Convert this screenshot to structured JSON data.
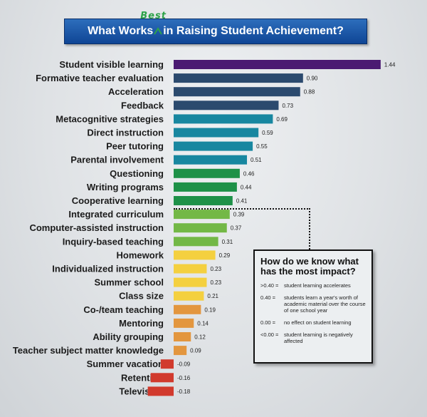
{
  "title": {
    "before": "What Works",
    "inserted": "Best",
    "after": "in Raising Student Achievement?"
  },
  "callout": {
    "title": "How do we know what has the most impact?",
    "items": [
      {
        "key": ">0.40 =",
        "text": "student learning accelerates"
      },
      {
        "key": "0.40 =",
        "text": "students learn a year's worth of academic material over the course of one school year"
      },
      {
        "key": "0.00 =",
        "text": "no effect on student learning"
      },
      {
        "key": "<0.00 =",
        "text": "student learning is negatively affected"
      }
    ]
  },
  "chart_data": {
    "type": "bar",
    "orientation": "horizontal",
    "title": "What Works Best in Raising Student Achievement?",
    "categories": [
      "Student visible learning",
      "Formative teacher evaluation",
      "Acceleration",
      "Feedback",
      "Metacognitive strategies",
      "Direct instruction",
      "Peer tutoring",
      "Parental involvement",
      "Questioning",
      "Writing programs",
      "Cooperative learning",
      "Integrated curriculum",
      "Computer-assisted instruction",
      "Inquiry-based teaching",
      "Homework",
      "Individualized instruction",
      "Summer school",
      "Class size",
      "Co-/team teaching",
      "Mentoring",
      "Ability grouping",
      "Teacher subject matter knowledge",
      "Summer vacation",
      "Retention",
      "Television"
    ],
    "values": [
      1.44,
      0.9,
      0.88,
      0.73,
      0.69,
      0.59,
      0.55,
      0.51,
      0.46,
      0.44,
      0.41,
      0.39,
      0.37,
      0.31,
      0.29,
      0.23,
      0.23,
      0.21,
      0.19,
      0.14,
      0.12,
      0.09,
      -0.09,
      -0.16,
      -0.18
    ],
    "value_labels": [
      "1.44",
      "0.90",
      "0.88",
      "0.73",
      "0.69",
      "0.59",
      "0.55",
      "0.51",
      "0.46",
      "0.44",
      "0.41",
      "0.39",
      "0.37",
      "0.31",
      "0.29",
      "0.23",
      "0.23",
      "0.21",
      "0.19",
      "0.14",
      "0.12",
      "0.09",
      "-0.09",
      "-0.16",
      "-0.18"
    ],
    "colors": [
      "#4b1a72",
      "#2b4a6e",
      "#2b4a6e",
      "#2b4a6e",
      "#1887a0",
      "#1887a0",
      "#1887a0",
      "#1887a0",
      "#1e9148",
      "#1e9148",
      "#1e9148",
      "#73b846",
      "#73b846",
      "#73b846",
      "#f4d03f",
      "#f4d03f",
      "#f4d03f",
      "#f4d03f",
      "#e3963e",
      "#e3963e",
      "#e3963e",
      "#e3963e",
      "#d13a2d",
      "#d13a2d",
      "#d13a2d"
    ],
    "xlim": [
      -0.18,
      1.44
    ],
    "grid": false
  }
}
